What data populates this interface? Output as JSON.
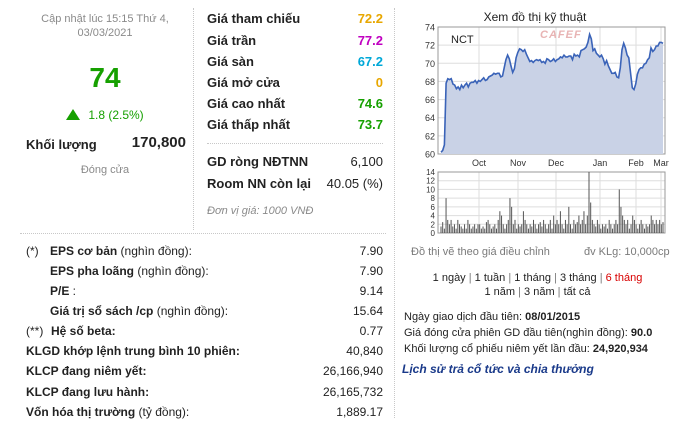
{
  "summary": {
    "updated": "Cập nhật lúc 15:15 Thứ 4,",
    "updated_date": "03/03/2021",
    "price": "74",
    "change": "1.8 (2.5%)",
    "volume_label": "Khối lượng",
    "volume_value": "170,800",
    "close_label": "Đóng cửa"
  },
  "prices": [
    {
      "label": "Giá tham chiếu",
      "value": "72.2",
      "color": "#e8a700"
    },
    {
      "label": "Giá trần",
      "value": "77.2",
      "color": "#c000c0"
    },
    {
      "label": "Giá sàn",
      "value": "67.2",
      "color": "#00a8d8"
    },
    {
      "label": "Giá mở cửa",
      "value": "0",
      "color": "#e8a700"
    },
    {
      "label": "Giá cao nhất",
      "value": "74.6",
      "color": "#16a000"
    },
    {
      "label": "Giá thấp nhất",
      "value": "73.7",
      "color": "#16a000"
    }
  ],
  "foreign": [
    {
      "label": "GD ròng NĐTNN",
      "value": "6,100"
    },
    {
      "label": "Room NN còn lại",
      "value": "40.05 (%)"
    }
  ],
  "unit_note": "Đơn vị giá: 1000 VNĐ",
  "financials": [
    {
      "prefix": "(*)",
      "label": "EPS cơ bản",
      "sub": " (nghìn đồng):",
      "value": "7.90"
    },
    {
      "prefix": "",
      "label": "EPS pha loãng",
      "sub": " (nghìn đồng):",
      "value": "7.90"
    },
    {
      "prefix": "",
      "label": "P/E",
      "sub": " :",
      "value": "9.14"
    },
    {
      "prefix": "",
      "label": "Giá trị sổ sách /cp",
      "sub": " (nghìn đồng):",
      "value": "15.64"
    },
    {
      "prefix": "(**)",
      "label": "Hệ số beta:",
      "sub": "",
      "value": "0.77"
    },
    {
      "prefix": "",
      "label": "KLGD khớp lệnh trung bình 10 phiên:",
      "sub": "",
      "value": "40,840"
    },
    {
      "prefix": "",
      "label": "KLCP đang niêm yết:",
      "sub": "",
      "value": "26,166,940"
    },
    {
      "prefix": "",
      "label": "KLCP đang lưu hành:",
      "sub": "",
      "value": "26,165,732"
    },
    {
      "prefix": "",
      "label": "Vốn hóa thị trường",
      "sub": " (tỷ đồng):",
      "value": "1,889.17"
    }
  ],
  "chart": {
    "title": "Xem đồ thị kỹ thuật",
    "ticker": "NCT",
    "watermark": "CAFEF",
    "footer_left": "Đồ thị vẽ theo giá điều chỉnh",
    "footer_right": "đv KLg: 10,000cp",
    "colors": {
      "line": "#3a63b8",
      "area": "#c9d2e6",
      "volume": "#555555",
      "grid": "#dddddd"
    }
  },
  "chart_data": {
    "type": "line",
    "price_axis": {
      "ticks": [
        "74",
        "72",
        "70",
        "68",
        "66",
        "64",
        "62",
        "60"
      ],
      "ylim": [
        60,
        74
      ]
    },
    "volume_axis": {
      "ticks": [
        "14",
        "12",
        "10",
        "8",
        "6",
        "4",
        "2",
        "0"
      ],
      "ylim": [
        0,
        14
      ]
    },
    "x_ticks": [
      "Oct",
      "Nov",
      "Dec",
      "Jan",
      "Feb",
      "Mar"
    ],
    "price_series": [
      60.2,
      60.4,
      61,
      67.8,
      68.3,
      68.2,
      68.3,
      67.7,
      67.6,
      67.2,
      67.4,
      67.1,
      67.6,
      67.3,
      67.6,
      67.8,
      67.4,
      67.8,
      67.9,
      67.9,
      68.1,
      67.8,
      68.1,
      68.0,
      68.2,
      68.4,
      68.1,
      68.2,
      68.5,
      68.6,
      68.7,
      68.9,
      68.8,
      68.9,
      68.9,
      68.5,
      68.6,
      69.5,
      70.4,
      70.9,
      70.5,
      69.7,
      69,
      69.4,
      70.6,
      71.2,
      71.6,
      71.5,
      71.3,
      71.5,
      71.0,
      70.6,
      70.2,
      70.3,
      70.1,
      70.3,
      70.4,
      70.3,
      70.4,
      70.1,
      70.2,
      70.0,
      70.5,
      70.4,
      70.2,
      70.3,
      70.5,
      70.2,
      70.4,
      70.5,
      70.7,
      70.6,
      70.9,
      70.7,
      70.7,
      70.8,
      70.8,
      70.4,
      71.0,
      70.8,
      70.9,
      70.7,
      71.4,
      71.5,
      71.6,
      71.8,
      72.3,
      73.2,
      72.7,
      71.4,
      71.6,
      71.1,
      70.9,
      70.7,
      70.9,
      70.5,
      69.9,
      70.3,
      69.7,
      69.3,
      68.9,
      68.9,
      69.0,
      68.5,
      68.4,
      69.5,
      71.5,
      72.2,
      71.7,
      70.9,
      70.6,
      68.9,
      67.3,
      67.1,
      67.7,
      68.8,
      69.3,
      69.5,
      69.5,
      69.9,
      70.0,
      70.4,
      70.6,
      71.7,
      71.3,
      71.5,
      71.9,
      71.9,
      72.3,
      72.3,
      72.2
    ],
    "volume_series": [
      1.5,
      2.5,
      1,
      8,
      3,
      2,
      3,
      1.5,
      2,
      1,
      3,
      2,
      1.5,
      1,
      2,
      1,
      3,
      2,
      1,
      1.5,
      2,
      1,
      2,
      2,
      1,
      1.5,
      1,
      2.5,
      3,
      2,
      1,
      1.5,
      2,
      1,
      3,
      5,
      4,
      2,
      1,
      2,
      3,
      8,
      6,
      2,
      3,
      1,
      2,
      1.5,
      2,
      5,
      3,
      2,
      1,
      2,
      1.5,
      3,
      2,
      1,
      2,
      2.5,
      1.5,
      3,
      2,
      1,
      2,
      3,
      1,
      4,
      2,
      3,
      2,
      5,
      2,
      1,
      3,
      2,
      6,
      2,
      1,
      3,
      2,
      2.5,
      4,
      2,
      3,
      5,
      2,
      4,
      14,
      7,
      3,
      2,
      1.5,
      3,
      2,
      1,
      2,
      1.5,
      2,
      1,
      3,
      2,
      1,
      2,
      3,
      2,
      10,
      6,
      4,
      3,
      2,
      3,
      1,
      2,
      4,
      3,
      2,
      1,
      2,
      3,
      2,
      1,
      2,
      1.5,
      2,
      4,
      3,
      2,
      3,
      2,
      3,
      2,
      2.5
    ]
  },
  "periods": {
    "row1": [
      "1 ngày",
      "1 tuần",
      "1 tháng",
      "3 tháng",
      "6 tháng"
    ],
    "row2": [
      "1 năm",
      "3 năm",
      "tất cả"
    ],
    "selected": "6 tháng"
  },
  "info": [
    {
      "label": "Ngày giao dịch đầu tiên:",
      "value": "08/01/2015"
    },
    {
      "label": "Giá đóng cửa phiên GD đầu tiên(nghìn đồng):",
      "value": "90.0"
    },
    {
      "label": "Khối lượng cổ phiếu niêm yết lần đầu:",
      "value": "24,920,934"
    }
  ],
  "history_link": "Lịch sử trả cổ tức và chia thưởng"
}
